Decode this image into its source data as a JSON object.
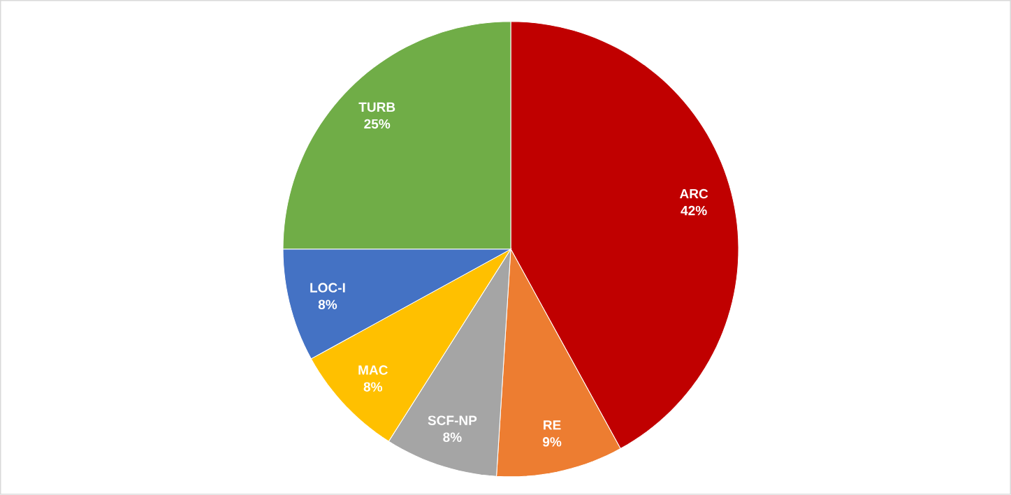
{
  "chart_data": {
    "type": "pie",
    "categories": [
      "ARC",
      "RE",
      "SCF-NP",
      "MAC",
      "LOC-I",
      "TURB"
    ],
    "values": [
      42,
      9,
      8,
      8,
      8,
      25
    ],
    "value_labels": [
      "42%",
      "9%",
      "8%",
      "8%",
      "8%",
      "25%"
    ],
    "colors": [
      "#c00000",
      "#ed7d31",
      "#a5a5a5",
      "#ffc000",
      "#4472c4",
      "#70ad47"
    ]
  }
}
